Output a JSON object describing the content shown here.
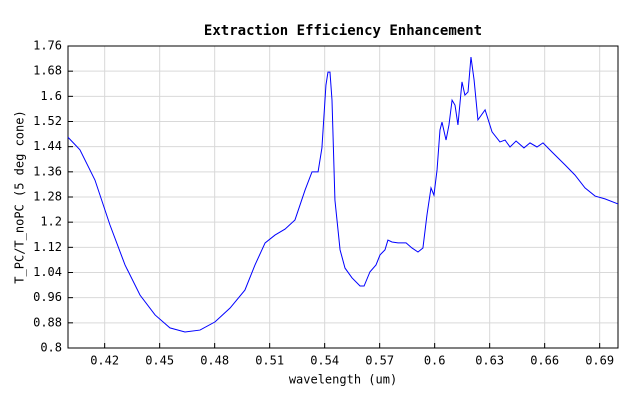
{
  "chart_data": {
    "type": "line",
    "title": "Extraction Efficiency Enhancement",
    "x_label": "wavelength (um)",
    "y_label": "T_PC/T_noPC (5 deg cone)",
    "xlim": [
      0.4,
      0.7
    ],
    "ylim": [
      0.8,
      1.76
    ],
    "xticks": [
      0.42,
      0.45,
      0.48,
      0.51,
      0.54,
      0.57,
      0.6,
      0.63,
      0.66,
      0.69
    ],
    "yticks": [
      0.8,
      0.88,
      0.96,
      1.04,
      1.12,
      1.2,
      1.28,
      1.36,
      1.44,
      1.52,
      1.6,
      1.68,
      1.76
    ],
    "grid": true,
    "x": [
      0.4,
      0.4065,
      0.4147,
      0.4229,
      0.4311,
      0.4393,
      0.4475,
      0.4556,
      0.4638,
      0.472,
      0.4802,
      0.4884,
      0.4965,
      0.502,
      0.5075,
      0.5129,
      0.5184,
      0.5238,
      0.5293,
      0.5331,
      0.5364,
      0.5385,
      0.5407,
      0.5418,
      0.5429,
      0.544,
      0.5456,
      0.5484,
      0.5511,
      0.5549,
      0.5593,
      0.5615,
      0.5647,
      0.568,
      0.5702,
      0.5729,
      0.5745,
      0.5767,
      0.58,
      0.5844,
      0.5876,
      0.5909,
      0.5936,
      0.5958,
      0.598,
      0.5996,
      0.6013,
      0.6029,
      0.604,
      0.6062,
      0.6078,
      0.6095,
      0.6111,
      0.6127,
      0.6149,
      0.6165,
      0.6182,
      0.6198,
      0.6215,
      0.6236,
      0.6275,
      0.6313,
      0.6356,
      0.6384,
      0.6411,
      0.6444,
      0.6487,
      0.652,
      0.6558,
      0.6591,
      0.664,
      0.6711,
      0.6765,
      0.682,
      0.6875,
      0.6929,
      0.7
    ],
    "series": [
      {
        "color": "#0000ff",
        "values": [
          1.47,
          1.43,
          1.334,
          1.191,
          1.064,
          0.968,
          0.905,
          0.864,
          0.851,
          0.857,
          0.883,
          0.927,
          0.984,
          1.064,
          1.134,
          1.159,
          1.178,
          1.207,
          1.302,
          1.36,
          1.36,
          1.436,
          1.636,
          1.677,
          1.677,
          1.588,
          1.27,
          1.112,
          1.054,
          1.023,
          0.997,
          0.997,
          1.042,
          1.064,
          1.096,
          1.112,
          1.143,
          1.137,
          1.134,
          1.134,
          1.118,
          1.105,
          1.118,
          1.223,
          1.309,
          1.286,
          1.366,
          1.493,
          1.518,
          1.461,
          1.509,
          1.588,
          1.572,
          1.509,
          1.646,
          1.604,
          1.614,
          1.725,
          1.652,
          1.525,
          1.557,
          1.487,
          1.455,
          1.461,
          1.439,
          1.458,
          1.436,
          1.452,
          1.439,
          1.452,
          1.423,
          1.382,
          1.35,
          1.309,
          1.283,
          1.274,
          1.258
        ]
      }
    ]
  }
}
